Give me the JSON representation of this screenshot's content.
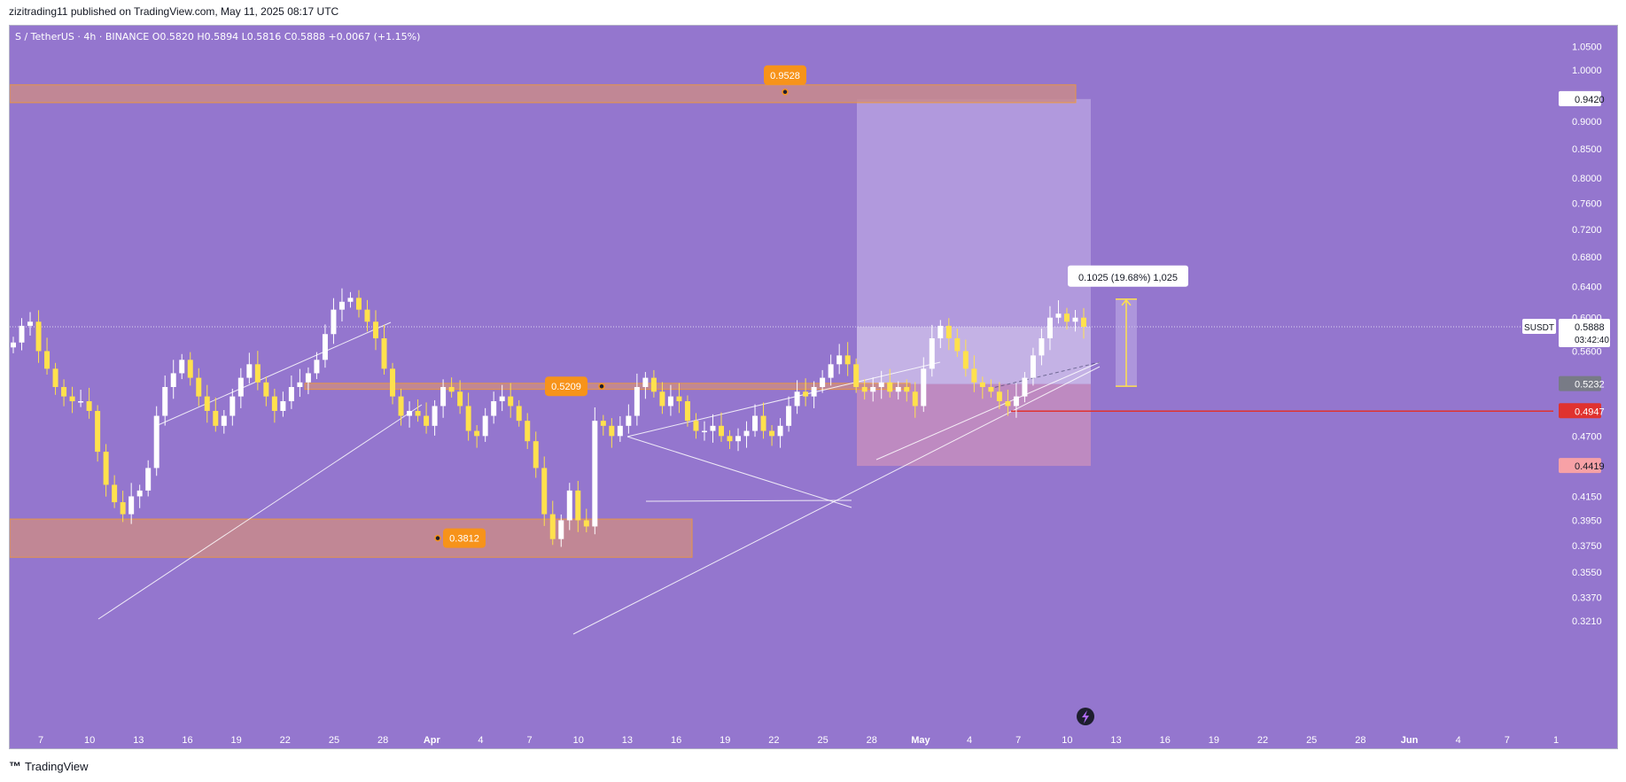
{
  "header": {
    "published_by": "zizitrading11 published on TradingView.com, May 11, 2025 08:17 UTC"
  },
  "footer": {
    "brand_mark": "™",
    "brand": "TradingView"
  },
  "colors": {
    "background": "#9476ce",
    "candle_up": "#ffffff",
    "candle_down": "#ffe14d",
    "zone_fill": "#c98a8c",
    "zone_border": "#f79b2e",
    "label_orange": "#f7931a",
    "stop_red": "#e0322f",
    "target_box": "#bba6e2",
    "stop_box": "#c58ebe"
  },
  "chart_data": {
    "type": "candlestick",
    "symbol_line": "S / TetherUS · 4h · BINANCE  O0.5820  H0.5894  L0.5816  C0.5888  +0.0067 (+1.15%)",
    "y_scale": "log",
    "ylim": [
      0.305,
      1.08
    ],
    "price_axis_ticks": [
      "1.0500",
      "1.0000",
      "0.9000",
      "0.8500",
      "0.8000",
      "0.7600",
      "0.7200",
      "0.6800",
      "0.6400",
      "0.6000",
      "0.5600",
      "0.4700",
      "0.4150",
      "0.3950",
      "0.3750",
      "0.3550",
      "0.3370",
      "0.3210"
    ],
    "time_axis_ticks": [
      "7",
      "10",
      "13",
      "16",
      "19",
      "22",
      "25",
      "28",
      "Apr",
      "4",
      "7",
      "10",
      "13",
      "16",
      "19",
      "22",
      "25",
      "28",
      "May",
      "4",
      "7",
      "10",
      "13",
      "16",
      "19",
      "22",
      "25",
      "28",
      "Jun",
      "4",
      "7",
      "1"
    ],
    "price_labels": [
      {
        "ticker": "",
        "value": "0.9420",
        "style": "white"
      },
      {
        "ticker": "SUSDT",
        "value": "0.5888",
        "countdown": "03:42:40",
        "style": "current"
      },
      {
        "ticker": "",
        "value": "0.5232",
        "style": "gray"
      },
      {
        "ticker": "",
        "value": "0.4947",
        "style": "red"
      },
      {
        "ticker": "",
        "value": "0.4419",
        "style": "pink"
      }
    ],
    "zones": [
      {
        "label": "0.9528",
        "low": 0.935,
        "high": 0.97
      },
      {
        "label": "0.5209",
        "low": 0.5175,
        "high": 0.524
      },
      {
        "label": "0.3812",
        "low": 0.366,
        "high": 0.396
      }
    ],
    "position": {
      "entry": 0.5232,
      "target": 0.942,
      "stop": 0.4419,
      "entry_high": 0.5888
    },
    "stop_line": 0.4947,
    "measure": {
      "text": "0.1025 (19.68%) 1,025",
      "from": 0.5209,
      "to": 0.6234
    },
    "close": 0.5888,
    "ohlc_path": [
      [
        0,
        0.57
      ],
      [
        1,
        0.59
      ],
      [
        2,
        0.595
      ],
      [
        3,
        0.56
      ],
      [
        4,
        0.54
      ],
      [
        5,
        0.52
      ],
      [
        6,
        0.51
      ],
      [
        7,
        0.505
      ],
      [
        8,
        0.505
      ],
      [
        9,
        0.495
      ],
      [
        10,
        0.455
      ],
      [
        11,
        0.425
      ],
      [
        12,
        0.41
      ],
      [
        13,
        0.4
      ],
      [
        14,
        0.415
      ],
      [
        15,
        0.42
      ],
      [
        16,
        0.44
      ],
      [
        17,
        0.49
      ],
      [
        18,
        0.52
      ],
      [
        19,
        0.535
      ],
      [
        20,
        0.55
      ],
      [
        21,
        0.53
      ],
      [
        22,
        0.51
      ],
      [
        23,
        0.495
      ],
      [
        24,
        0.48
      ],
      [
        25,
        0.49
      ],
      [
        26,
        0.51
      ],
      [
        27,
        0.53
      ],
      [
        28,
        0.545
      ],
      [
        29,
        0.525
      ],
      [
        30,
        0.51
      ],
      [
        31,
        0.495
      ],
      [
        32,
        0.505
      ],
      [
        33,
        0.52
      ],
      [
        34,
        0.525
      ],
      [
        35,
        0.535
      ],
      [
        36,
        0.55
      ],
      [
        37,
        0.58
      ],
      [
        38,
        0.61
      ],
      [
        39,
        0.62
      ],
      [
        40,
        0.625
      ],
      [
        41,
        0.61
      ],
      [
        42,
        0.595
      ],
      [
        43,
        0.575
      ],
      [
        44,
        0.54
      ],
      [
        45,
        0.51
      ],
      [
        46,
        0.49
      ],
      [
        47,
        0.495
      ],
      [
        48,
        0.49
      ],
      [
        49,
        0.48
      ],
      [
        50,
        0.5
      ],
      [
        51,
        0.52
      ],
      [
        52,
        0.515
      ],
      [
        53,
        0.5
      ],
      [
        54,
        0.475
      ],
      [
        55,
        0.47
      ],
      [
        56,
        0.49
      ],
      [
        57,
        0.505
      ],
      [
        58,
        0.51
      ],
      [
        59,
        0.5
      ],
      [
        60,
        0.485
      ],
      [
        61,
        0.465
      ],
      [
        62,
        0.44
      ],
      [
        63,
        0.4
      ],
      [
        64,
        0.38
      ],
      [
        65,
        0.395
      ],
      [
        66,
        0.42
      ],
      [
        67,
        0.395
      ],
      [
        68,
        0.39
      ],
      [
        69,
        0.485
      ],
      [
        70,
        0.48
      ],
      [
        71,
        0.47
      ],
      [
        72,
        0.48
      ],
      [
        73,
        0.49
      ],
      [
        74,
        0.52
      ],
      [
        75,
        0.53
      ],
      [
        76,
        0.515
      ],
      [
        77,
        0.5
      ],
      [
        78,
        0.51
      ],
      [
        79,
        0.505
      ],
      [
        80,
        0.485
      ],
      [
        81,
        0.475
      ],
      [
        82,
        0.475
      ],
      [
        83,
        0.48
      ],
      [
        84,
        0.47
      ],
      [
        85,
        0.465
      ],
      [
        86,
        0.47
      ],
      [
        87,
        0.475
      ],
      [
        88,
        0.49
      ],
      [
        89,
        0.475
      ],
      [
        90,
        0.47
      ],
      [
        91,
        0.48
      ],
      [
        92,
        0.5
      ],
      [
        93,
        0.515
      ],
      [
        94,
        0.51
      ],
      [
        95,
        0.52
      ],
      [
        96,
        0.53
      ],
      [
        97,
        0.545
      ],
      [
        98,
        0.555
      ],
      [
        99,
        0.545
      ],
      [
        100,
        0.52
      ],
      [
        101,
        0.515
      ],
      [
        102,
        0.52
      ],
      [
        103,
        0.525
      ],
      [
        104,
        0.515
      ],
      [
        105,
        0.52
      ],
      [
        106,
        0.515
      ],
      [
        107,
        0.5
      ],
      [
        108,
        0.54
      ],
      [
        109,
        0.575
      ],
      [
        110,
        0.59
      ],
      [
        111,
        0.575
      ],
      [
        112,
        0.56
      ],
      [
        113,
        0.54
      ],
      [
        114,
        0.525
      ],
      [
        115,
        0.52
      ],
      [
        116,
        0.515
      ],
      [
        117,
        0.505
      ],
      [
        118,
        0.5
      ],
      [
        119,
        0.51
      ],
      [
        120,
        0.53
      ],
      [
        121,
        0.555
      ],
      [
        122,
        0.575
      ],
      [
        123,
        0.6
      ],
      [
        124,
        0.605
      ],
      [
        125,
        0.595
      ],
      [
        126,
        0.6
      ],
      [
        127,
        0.5888
      ]
    ]
  }
}
